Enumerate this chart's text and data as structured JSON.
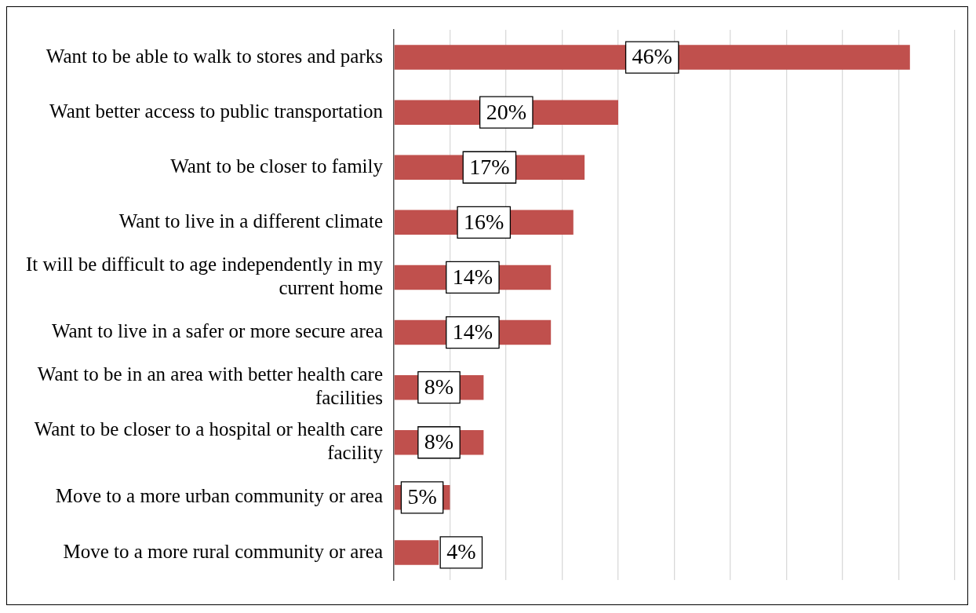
{
  "chart_data": {
    "type": "bar",
    "orientation": "horizontal",
    "categories": [
      "Want to be able to walk to stores and parks",
      "Want better access to public transportation",
      "Want to be closer to family",
      "Want to live in a different climate",
      "It will be difficult to age independently in my current home",
      "Want to live in a safer or more secure area",
      "Want to be in an area with better health care facilities",
      "Want to be closer to a hospital or health care facility",
      "Move to a more urban community or area",
      "Move to a more rural community or area"
    ],
    "values": [
      46,
      20,
      17,
      16,
      14,
      14,
      8,
      8,
      5,
      4
    ],
    "value_labels": [
      "46%",
      "20%",
      "17%",
      "16%",
      "14%",
      "14%",
      "8%",
      "8%",
      "5%",
      "4%"
    ],
    "color": "#c0504d",
    "xlim": [
      0,
      50
    ],
    "tick_labels": "y",
    "grid": "x",
    "legend": false
  }
}
